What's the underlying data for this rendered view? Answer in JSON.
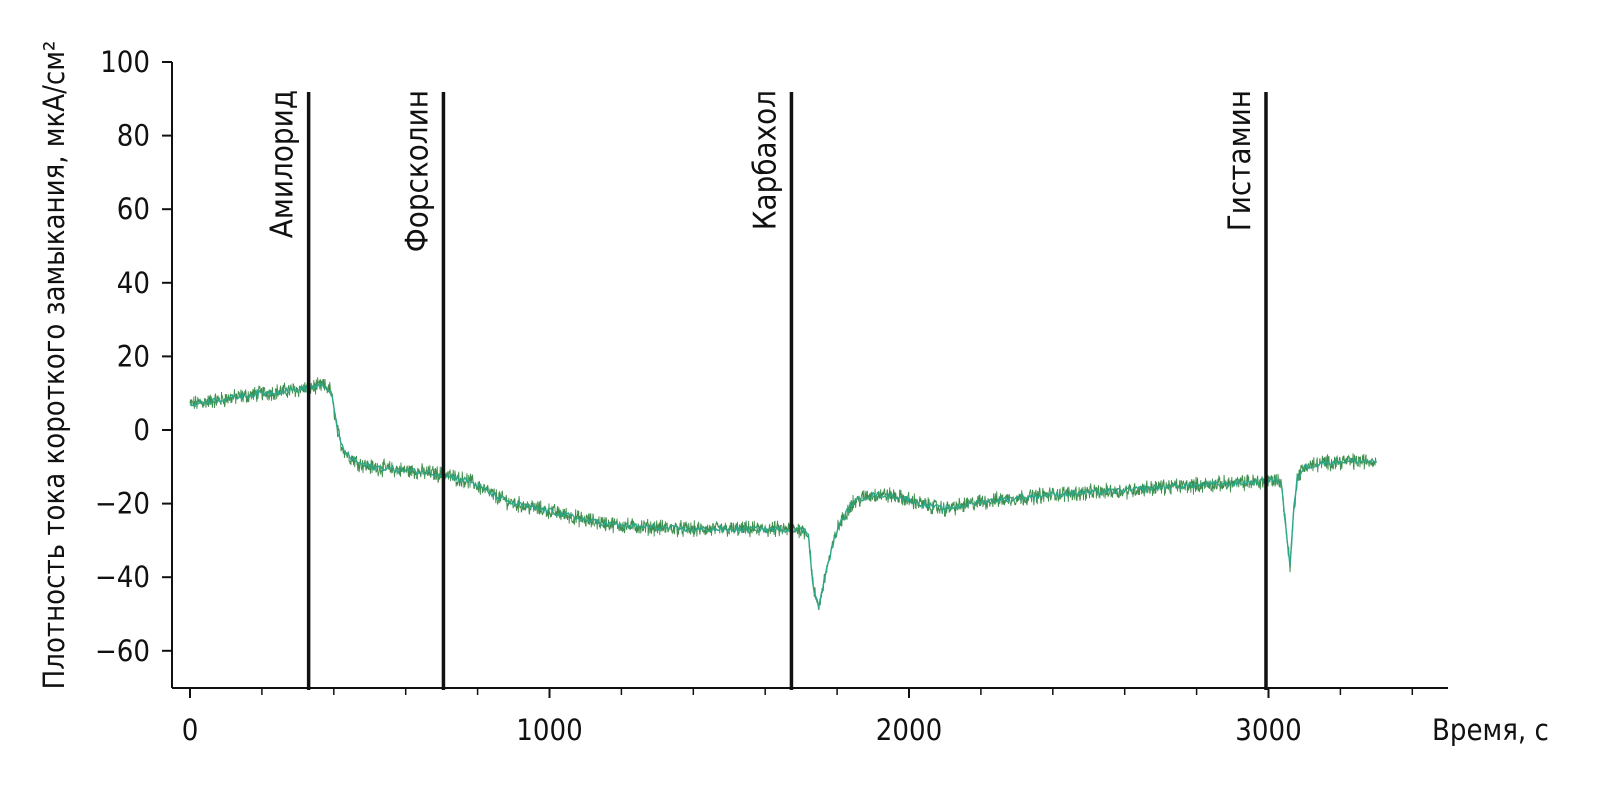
{
  "chart_data": {
    "type": "line",
    "title": "",
    "xlabel": "Время, с",
    "ylabel": "Плотность тока короткого замыкания, мкА/см²",
    "xlim": [
      -40,
      3530
    ],
    "ylim": [
      -70,
      100
    ],
    "x_ticks": [
      0,
      1000,
      2000,
      3000
    ],
    "y_ticks": [
      100,
      80,
      60,
      40,
      20,
      0,
      -20,
      -40,
      -60
    ],
    "x_tick_labels": [
      "0",
      "1000",
      "2000",
      "3000"
    ],
    "y_tick_labels": [
      "100",
      "80",
      "60",
      "40",
      "20",
      "0",
      "−20",
      "−40",
      "−60"
    ],
    "grid": false,
    "series": [
      {
        "color": "#2aa889",
        "noise_color": "#1f7a2e",
        "x": [
          0,
          100,
          200,
          300,
          330,
          370,
          390,
          400,
          410,
          420,
          440,
          470,
          500,
          600,
          700,
          780,
          850,
          900,
          1000,
          1100,
          1200,
          1300,
          1400,
          1500,
          1600,
          1680,
          1700,
          1720,
          1735,
          1750,
          1770,
          1800,
          1840,
          1880,
          1920,
          1960,
          2000,
          2050,
          2100,
          2150,
          2200,
          2300,
          2400,
          2500,
          2600,
          2700,
          2800,
          2900,
          2980,
          3020,
          3035,
          3050,
          3060,
          3070,
          3080,
          3100,
          3150,
          3200,
          3250,
          3300
        ],
        "y": [
          7,
          8.5,
          10,
          11,
          11.5,
          12,
          11,
          6,
          0,
          -4,
          -7,
          -9,
          -10,
          -11,
          -12,
          -14,
          -18,
          -20,
          -22,
          -24.5,
          -26,
          -26.5,
          -27,
          -27,
          -27,
          -27,
          -27,
          -28,
          -44,
          -48,
          -38,
          -27,
          -20,
          -18,
          -17.5,
          -18,
          -19,
          -20.5,
          -21.5,
          -20.5,
          -19.5,
          -18.5,
          -17.5,
          -17,
          -16.5,
          -15.5,
          -15,
          -14.5,
          -14,
          -13.5,
          -14,
          -28,
          -37,
          -22,
          -13,
          -10,
          -9,
          -8.5,
          -8.5,
          -8.5
        ]
      }
    ],
    "events": [
      {
        "label": "Амилорид",
        "x": 330
      },
      {
        "label": "Форсколин",
        "x": 705
      },
      {
        "label": "Карбахол",
        "x": 1673
      },
      {
        "label": "Гистамин",
        "x": 2993
      }
    ]
  }
}
